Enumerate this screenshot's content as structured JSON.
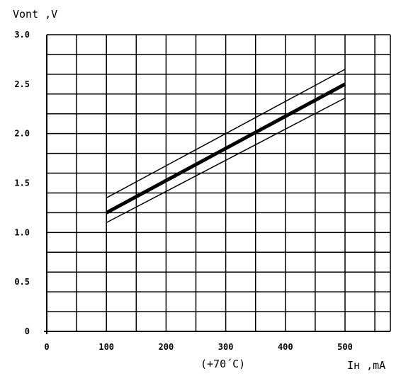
{
  "chart_data": {
    "type": "line",
    "title": "",
    "ylabel": "Vont ,V",
    "xlabel": "Iн ,mA",
    "condition": "(+70´C)",
    "xlim": [
      0,
      580
    ],
    "ylim": [
      0,
      3.0
    ],
    "x_ticks": [
      "0",
      "100",
      "200",
      "300",
      "400",
      "500"
    ],
    "y_ticks": [
      "0",
      "0.5",
      "1.0",
      "1.5",
      "2.0",
      "2.5",
      "3.0"
    ],
    "grid": true,
    "series": [
      {
        "style": "thick",
        "x": [
          100,
          500
        ],
        "y": [
          1.2,
          2.5
        ]
      },
      {
        "style": "thin",
        "x": [
          100,
          500
        ],
        "y": [
          1.35,
          2.65
        ]
      },
      {
        "style": "thin",
        "x": [
          100,
          500
        ],
        "y": [
          1.1,
          2.36
        ]
      }
    ]
  }
}
